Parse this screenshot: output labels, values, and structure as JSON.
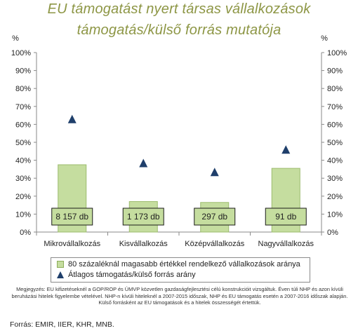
{
  "chart_data": {
    "type": "bar",
    "title_line1": "EU támogatást nyert társas vállalkozások",
    "title_line2": "támogatás/külső forrás mutatója",
    "y_unit_left": "%",
    "y_unit_right": "%",
    "ylim": [
      0,
      100
    ],
    "yticks": [
      "0%",
      "10%",
      "20%",
      "30%",
      "40%",
      "50%",
      "60%",
      "70%",
      "80%",
      "90%",
      "100%"
    ],
    "categories": [
      "Mikrovállalkozás",
      "Kisvállalkozás",
      "Középvállalkozás",
      "Nagyvállalkozás"
    ],
    "series": [
      {
        "name": "80 százaléknál magasabb értékkel rendelkező vállalkozások aránya",
        "kind": "bar",
        "color": "#c5dd9f",
        "values": [
          37.5,
          17,
          16.5,
          35.5
        ]
      },
      {
        "name": "Átlagos támogatás/külső forrás arány",
        "kind": "marker-triangle",
        "color": "#1f3f6b",
        "values": [
          63,
          38.5,
          33.5,
          46
        ]
      }
    ],
    "count_labels": [
      "8 157 db",
      "1 173 db",
      "297 db",
      "91 db"
    ],
    "grid": false,
    "legend_position": "bottom"
  },
  "note": "Megjegyzés: EU kifizetéseknél a GOP/ROP és ÚMVP közvetlen gazdaságfejlesztési célú konstrukcióit vizsgáltuk. Éven túli NHP és azon kívüli beruházási hitelek figyelembe vételével. NHP-n kívüli hiteleknél a 2007-2015 időszak, NHP és EU támogatás esetén a 2007-2016 időszak alapján. Külső forrásként az EU támogatások és a hitelek összességét értettük.",
  "source": "Forrás: EMIR, IIER, KHR, MNB."
}
